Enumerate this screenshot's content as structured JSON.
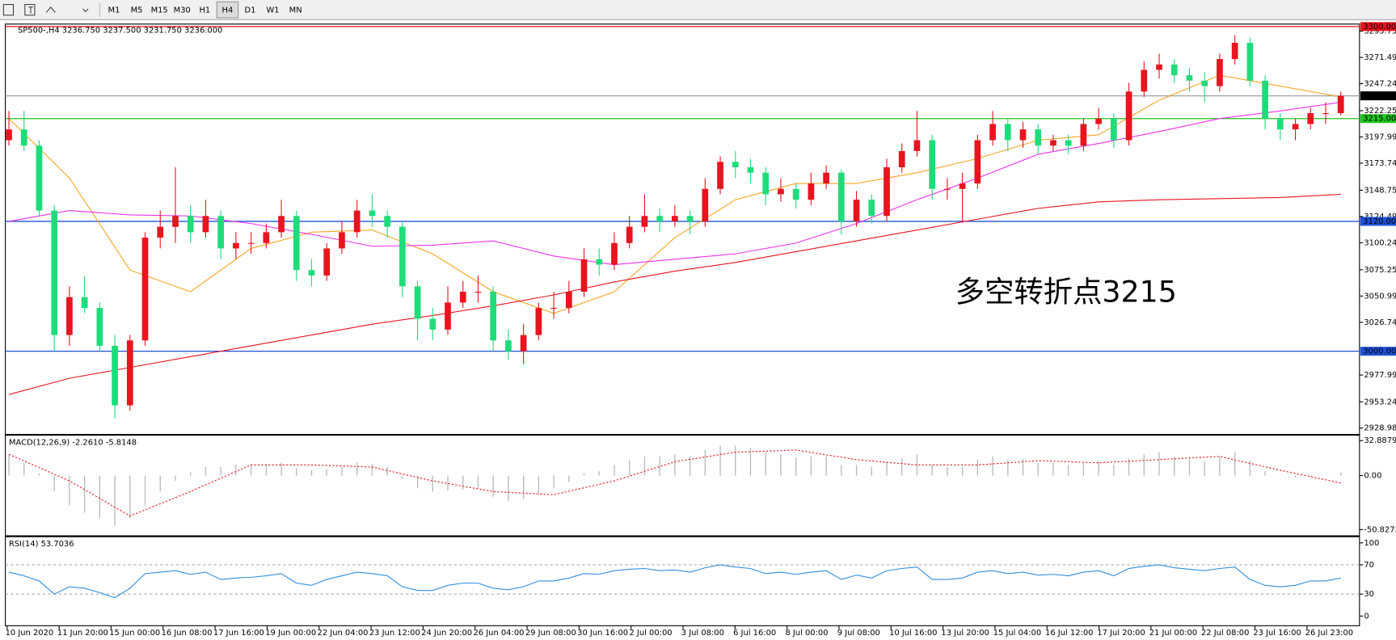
{
  "toolbar": {
    "timeframes": [
      "M1",
      "M5",
      "M15",
      "M30",
      "H1",
      "H4",
      "D1",
      "W1",
      "MN"
    ]
  },
  "chart_data": [
    {
      "type": "candlestick",
      "title": "SP500-,H4  3236.750 3237.500 3231.750 3236.000",
      "up_color": "#e8141e",
      "down_color": "#1fdc7a",
      "ylim": [
        2924,
        3301.5
      ],
      "yticks": [
        {
          "value": 3295.75,
          "label": "3295.750"
        },
        3271.495,
        {
          "value": 3247.24,
          "label": "3247.240"
        },
        {
          "value": 3222.25,
          "label": "3222.250"
        },
        3197.995,
        {
          "value": 3173.74,
          "label": "3173.740"
        },
        {
          "value": 3148.75,
          "label": "3148.750"
        },
        3124.495,
        {
          "value": 3100.24,
          "label": "3100.240"
        },
        {
          "value": 3075.25,
          "label": "3075.250"
        },
        3050.995,
        {
          "value": 3026.74,
          "label": "3026.740"
        },
        2977.995,
        {
          "value": 2953.24,
          "label": "2953.240"
        },
        2928.985
      ],
      "levels": [
        {
          "value": 3300,
          "label": "3300.000",
          "color": "#e8141e",
          "box": "#e8141e"
        },
        {
          "value": 3236,
          "label": "3236.000",
          "color": "#a0a0a0",
          "box": "#000000"
        },
        {
          "value": 3215,
          "label": "3215.000",
          "color": "#1fc41f",
          "box": "#1fc41f"
        },
        {
          "value": 3120,
          "label": "3120.000",
          "color": "#2050d8",
          "box": "#2050d8"
        },
        {
          "value": 3000,
          "label": "3000.000",
          "color": "#2050d8",
          "box": "#2050d8"
        }
      ],
      "annotation": {
        "text": "多空转折点3215",
        "color": "#e8141e"
      },
      "candles": [
        [
          3195,
          3222,
          3190,
          3205
        ],
        [
          3205,
          3222,
          3185,
          3190
        ],
        [
          3190,
          3195,
          3125,
          3130
        ],
        [
          3130,
          3135,
          3000,
          3015
        ],
        [
          3015,
          3060,
          3005,
          3050
        ],
        [
          3050,
          3070,
          3035,
          3040
        ],
        [
          3040,
          3045,
          3000,
          3005
        ],
        [
          3005,
          3015,
          2938,
          2950
        ],
        [
          2950,
          3015,
          2945,
          3010
        ],
        [
          3010,
          3110,
          3005,
          3105
        ],
        [
          3105,
          3130,
          3095,
          3115
        ],
        [
          3115,
          3170,
          3100,
          3125
        ],
        [
          3125,
          3135,
          3100,
          3110
        ],
        [
          3110,
          3140,
          3105,
          3125
        ],
        [
          3125,
          3130,
          3085,
          3095
        ],
        [
          3095,
          3110,
          3085,
          3100
        ],
        [
          3100,
          3110,
          3090,
          3100
        ],
        [
          3100,
          3118,
          3095,
          3110
        ],
        [
          3110,
          3140,
          3105,
          3125
        ],
        [
          3125,
          3130,
          3065,
          3075
        ],
        [
          3075,
          3085,
          3060,
          3070
        ],
        [
          3070,
          3100,
          3065,
          3095
        ],
        [
          3095,
          3120,
          3090,
          3110
        ],
        [
          3110,
          3140,
          3105,
          3130
        ],
        [
          3130,
          3145,
          3115,
          3125
        ],
        [
          3125,
          3130,
          3105,
          3115
        ],
        [
          3115,
          3120,
          3050,
          3060
        ],
        [
          3060,
          3065,
          3010,
          3030
        ],
        [
          3030,
          3040,
          3010,
          3020
        ],
        [
          3020,
          3060,
          3015,
          3045
        ],
        [
          3045,
          3065,
          3040,
          3055
        ],
        [
          3055,
          3070,
          3045,
          3055
        ],
        [
          3055,
          3060,
          3000,
          3010
        ],
        [
          3010,
          3020,
          2992,
          3000
        ],
        [
          3000,
          3025,
          2988,
          3015
        ],
        [
          3015,
          3045,
          3010,
          3040
        ],
        [
          3040,
          3055,
          3030,
          3040
        ],
        [
          3040,
          3065,
          3035,
          3055
        ],
        [
          3055,
          3095,
          3050,
          3085
        ],
        [
          3085,
          3095,
          3070,
          3080
        ],
        [
          3080,
          3110,
          3075,
          3100
        ],
        [
          3100,
          3125,
          3095,
          3115
        ],
        [
          3115,
          3145,
          3110,
          3125
        ],
        [
          3125,
          3132,
          3110,
          3120
        ],
        [
          3120,
          3135,
          3115,
          3125
        ],
        [
          3125,
          3130,
          3108,
          3120
        ],
        [
          3120,
          3160,
          3115,
          3150
        ],
        [
          3150,
          3180,
          3145,
          3175
        ],
        [
          3175,
          3185,
          3160,
          3170
        ],
        [
          3170,
          3178,
          3155,
          3165
        ],
        [
          3165,
          3170,
          3135,
          3145
        ],
        [
          3145,
          3160,
          3138,
          3150
        ],
        [
          3150,
          3155,
          3132,
          3140
        ],
        [
          3140,
          3165,
          3135,
          3155
        ],
        [
          3155,
          3172,
          3150,
          3165
        ],
        [
          3165,
          3168,
          3108,
          3120
        ],
        [
          3120,
          3148,
          3115,
          3140
        ],
        [
          3140,
          3145,
          3118,
          3125
        ],
        [
          3125,
          3178,
          3120,
          3170
        ],
        [
          3170,
          3192,
          3165,
          3185
        ],
        [
          3185,
          3222,
          3180,
          3195
        ],
        [
          3195,
          3200,
          3140,
          3150
        ],
        [
          3150,
          3160,
          3140,
          3150
        ],
        [
          3150,
          3165,
          3120,
          3155
        ],
        [
          3155,
          3200,
          3150,
          3195
        ],
        [
          3195,
          3222,
          3190,
          3210
        ],
        [
          3210,
          3215,
          3185,
          3195
        ],
        [
          3195,
          3212,
          3188,
          3205
        ],
        [
          3205,
          3210,
          3182,
          3190
        ],
        [
          3190,
          3200,
          3185,
          3195
        ],
        [
          3195,
          3200,
          3182,
          3190
        ],
        [
          3190,
          3215,
          3185,
          3210
        ],
        [
          3210,
          3225,
          3205,
          3215
        ],
        [
          3215,
          3220,
          3188,
          3195
        ],
        [
          3195,
          3248,
          3190,
          3240
        ],
        [
          3240,
          3268,
          3235,
          3260
        ],
        [
          3260,
          3275,
          3252,
          3265
        ],
        [
          3265,
          3270,
          3248,
          3255
        ],
        [
          3255,
          3262,
          3240,
          3250
        ],
        [
          3250,
          3258,
          3230,
          3245
        ],
        [
          3245,
          3275,
          3240,
          3270
        ],
        [
          3270,
          3292,
          3265,
          3285
        ],
        [
          3285,
          3290,
          3245,
          3250
        ],
        [
          3250,
          3255,
          3205,
          3215
        ],
        [
          3215,
          3220,
          3195,
          3205
        ],
        [
          3205,
          3215,
          3195,
          3210
        ],
        [
          3210,
          3225,
          3205,
          3220
        ],
        [
          3220,
          3230,
          3210,
          3220
        ],
        [
          3220,
          3240,
          3218,
          3236
        ]
      ],
      "series": [
        {
          "color": "#f5a623",
          "x": [
            0,
            4,
            8,
            12,
            16,
            20,
            24,
            28,
            32,
            36,
            40,
            44,
            48,
            52,
            56,
            60,
            64,
            68,
            72,
            76,
            80,
            84,
            88
          ],
          "values": [
            3215,
            3160,
            3075,
            3055,
            3095,
            3110,
            3112,
            3090,
            3055,
            3035,
            3055,
            3105,
            3140,
            3155,
            3155,
            3165,
            3178,
            3195,
            3200,
            3232,
            3255,
            3245,
            3235
          ]
        },
        {
          "color": "#ee30ee",
          "x": [
            0,
            4,
            8,
            12,
            16,
            20,
            24,
            28,
            32,
            36,
            40,
            44,
            48,
            52,
            56,
            60,
            64,
            68,
            72,
            76,
            80,
            84,
            88
          ],
          "values": [
            3120,
            3130,
            3126,
            3125,
            3118,
            3108,
            3097,
            3098,
            3102,
            3088,
            3080,
            3085,
            3090,
            3100,
            3118,
            3140,
            3160,
            3182,
            3192,
            3203,
            3215,
            3222,
            3230
          ]
        },
        {
          "color": "#e8141e",
          "x": [
            0,
            4,
            8,
            12,
            16,
            20,
            24,
            28,
            32,
            36,
            40,
            44,
            48,
            52,
            56,
            60,
            64,
            68,
            72,
            76,
            80,
            84,
            88
          ],
          "values": [
            2960,
            2975,
            2985,
            2995,
            3005,
            3015,
            3025,
            3033,
            3042,
            3052,
            3064,
            3074,
            3082,
            3092,
            3102,
            3112,
            3122,
            3132,
            3138,
            3140,
            3141,
            3142,
            3145
          ]
        }
      ]
    },
    {
      "type": "macd",
      "title": "MACD(12,26,9) -2.2610 -5.8148",
      "ylim": [
        -55.85,
        37.07
      ],
      "yticks": [
        32.8879,
        {
          "value": 0,
          "label": "0.00"
        },
        -50.8275
      ],
      "series": [
        {
          "type": "bar",
          "color": "#b8b8b8",
          "values": [
            20,
            12,
            2,
            -15,
            -28,
            -35,
            -40,
            -47,
            -40,
            -28,
            -15,
            -5,
            3,
            8,
            8,
            10,
            10,
            10,
            12,
            7,
            5,
            6,
            8,
            12,
            11,
            8,
            -3,
            -12,
            -15,
            -14,
            -13,
            -12,
            -20,
            -24,
            -22,
            -17,
            -12,
            -6,
            2,
            4,
            10,
            15,
            18,
            18,
            20,
            18,
            24,
            28,
            28,
            26,
            22,
            20,
            17,
            18,
            18,
            10,
            10,
            8,
            13,
            16,
            20,
            10,
            8,
            8,
            15,
            18,
            15,
            16,
            12,
            12,
            10,
            12,
            14,
            10,
            16,
            20,
            22,
            18,
            15,
            13,
            18,
            22,
            14,
            4,
            0,
            -2,
            -1,
            0,
            3
          ]
        },
        {
          "type": "line",
          "color": "#e8141e",
          "x": [
            0,
            4,
            8,
            12,
            16,
            20,
            24,
            28,
            32,
            36,
            40,
            44,
            48,
            52,
            56,
            60,
            64,
            68,
            72,
            76,
            80,
            84,
            88
          ],
          "values": [
            20,
            -5,
            -38,
            -15,
            10,
            10,
            8,
            -5,
            -15,
            -18,
            -5,
            13,
            22,
            24,
            15,
            10,
            10,
            14,
            12,
            15,
            18,
            5,
            -7
          ]
        }
      ]
    },
    {
      "type": "rsi",
      "title": "RSI(14) 53.7036",
      "ylim": [
        -12,
        107.2
      ],
      "yticks": [
        100,
        70,
        30,
        0
      ],
      "dashed_levels": [
        70,
        30
      ],
      "color": "#2e8ee0",
      "values": [
        60,
        55,
        48,
        30,
        40,
        38,
        32,
        25,
        38,
        58,
        60,
        62,
        57,
        60,
        50,
        52,
        53,
        55,
        58,
        45,
        42,
        50,
        55,
        60,
        58,
        55,
        40,
        35,
        35,
        42,
        45,
        45,
        38,
        36,
        40,
        48,
        48,
        52,
        58,
        57,
        62,
        64,
        65,
        62,
        63,
        60,
        66,
        70,
        67,
        65,
        58,
        60,
        57,
        60,
        62,
        50,
        56,
        52,
        62,
        65,
        67,
        50,
        50,
        52,
        60,
        62,
        58,
        60,
        56,
        57,
        55,
        60,
        62,
        55,
        65,
        68,
        70,
        66,
        64,
        62,
        65,
        67,
        50,
        42,
        40,
        42,
        48,
        48,
        52
      ],
      "x_labels": [
        "10 Jun 2020",
        "11 Jun 20:00",
        "15 Jun 00:00",
        "16 Jun 08:00",
        "17 Jun 16:00",
        "19 Jun 00:00",
        "22 Jun 04:00",
        "23 Jun 12:00",
        "24 Jun 20:00",
        "26 Jun 04:00",
        "29 Jun 08:00",
        "30 Jun 16:00",
        "2 Jul 00:00",
        "3 Jul 08:00",
        "6 Jul 16:00",
        "8 Jul 00:00",
        "9 Jul 08:00",
        "10 Jul 16:00",
        "13 Jul 20:00",
        "15 Jul 04:00",
        "16 Jul 12:00",
        "17 Jul 20:00",
        "21 Jul 00:00",
        "22 Jul 08:00",
        "23 Jul 16:00",
        "26 Jul 23:00"
      ]
    }
  ]
}
